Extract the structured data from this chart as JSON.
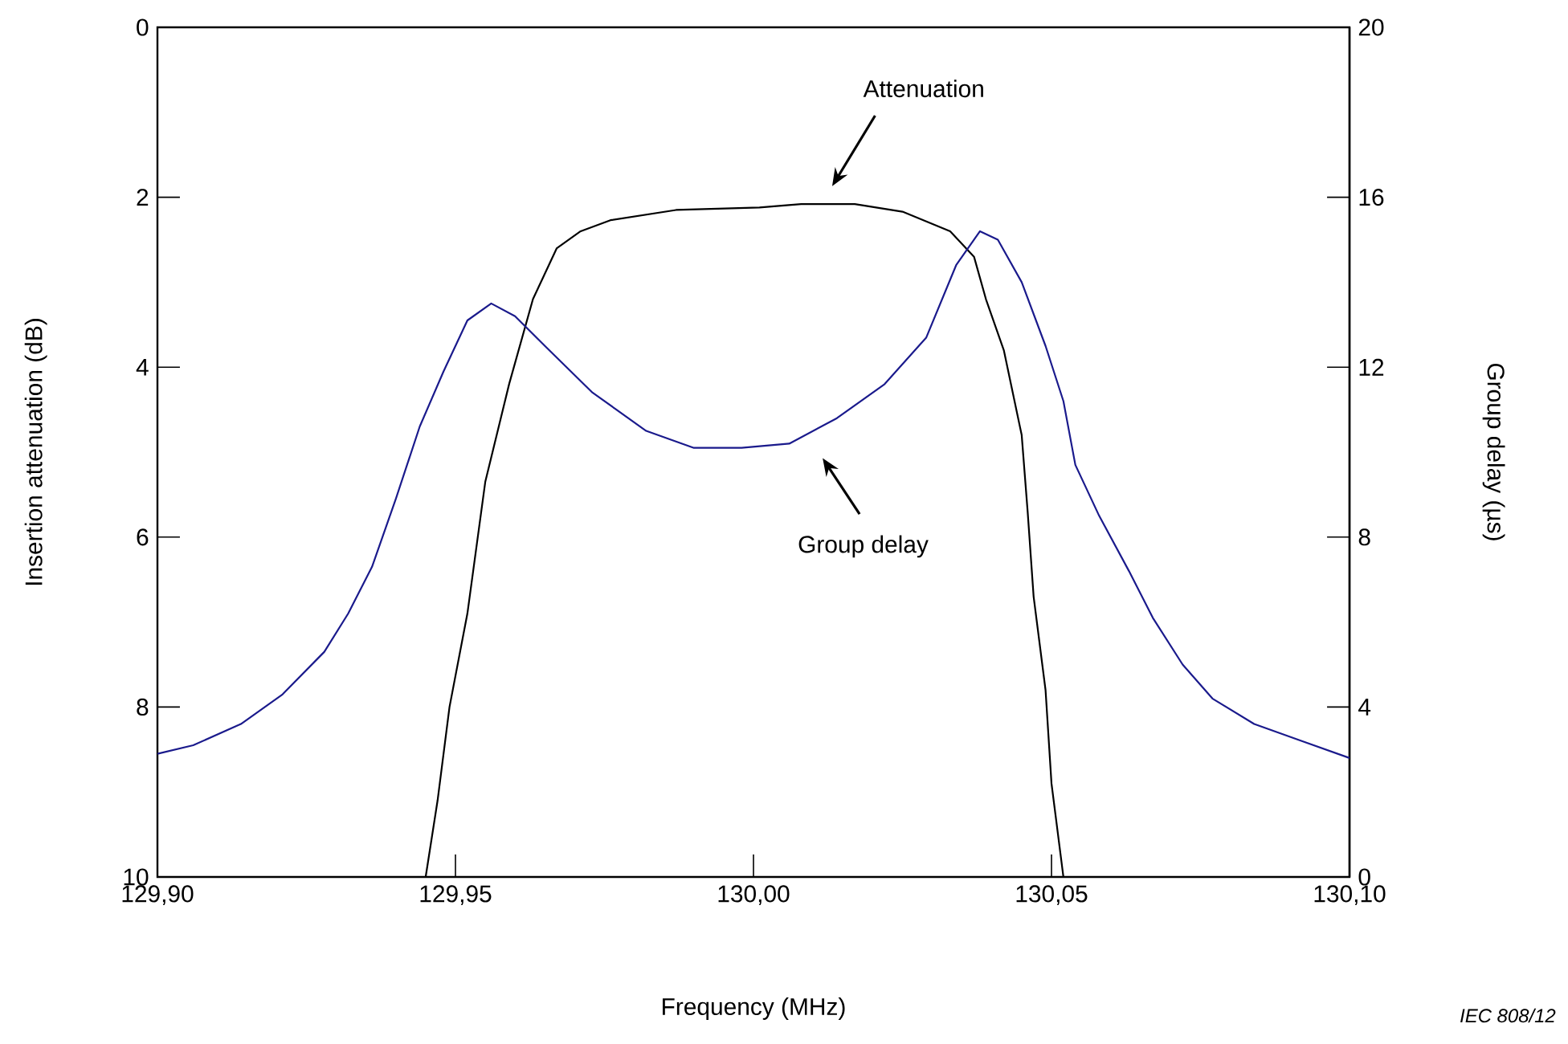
{
  "chart_data": {
    "type": "line",
    "xlabel": "Frequency   (MHz)",
    "ylabel": "Insertion attenuation   (dB)",
    "y2label": "Group delay   (µs)",
    "xlim": [
      129.9,
      130.1
    ],
    "xticks": [
      {
        "value": 129.9,
        "label": "129,90"
      },
      {
        "value": 129.95,
        "label": "129,95"
      },
      {
        "value": 130.0,
        "label": "130,00"
      },
      {
        "value": 130.05,
        "label": "130,05"
      },
      {
        "value": 130.1,
        "label": "130,10"
      }
    ],
    "ylim": [
      10,
      0
    ],
    "yticks": [
      0,
      2,
      4,
      6,
      8,
      10
    ],
    "y2lim": [
      0,
      20
    ],
    "y2ticks": [
      0,
      4,
      8,
      12,
      16,
      20
    ],
    "grid": false,
    "line_style": "solid",
    "series": [
      {
        "color": "#000000",
        "x": [
          129.945,
          129.947,
          129.949,
          129.952,
          129.955,
          129.959,
          129.963,
          129.967,
          129.971,
          129.976,
          129.987,
          130.001,
          130.008,
          130.017,
          130.025,
          130.033,
          130.037,
          130.039,
          130.042,
          130.045,
          130.046,
          130.047,
          130.049,
          130.05,
          130.052
        ],
        "values": [
          10.0,
          9.1,
          8.0,
          6.9,
          5.35,
          4.2,
          3.2,
          2.6,
          2.4,
          2.27,
          2.15,
          2.12,
          2.08,
          2.08,
          2.17,
          2.4,
          2.7,
          3.2,
          3.8,
          4.8,
          5.7,
          6.7,
          7.8,
          8.9,
          10.0
        ]
      },
      {
        "color": "#1a1a8c",
        "axis": "y2",
        "x": [
          129.9,
          129.906,
          129.914,
          129.921,
          129.928,
          129.932,
          129.936,
          129.94,
          129.944,
          129.948,
          129.952,
          129.956,
          129.96,
          129.965,
          129.973,
          129.982,
          129.99,
          129.998,
          130.006,
          130.014,
          130.022,
          130.029,
          130.034,
          130.038,
          130.041,
          130.045,
          130.049,
          130.052,
          130.054,
          130.058,
          130.063,
          130.067,
          130.072,
          130.077,
          130.084,
          130.092,
          130.1
        ],
        "values": [
          2.9,
          3.1,
          3.6,
          4.3,
          5.3,
          6.2,
          7.3,
          8.9,
          10.6,
          11.9,
          13.1,
          13.5,
          13.2,
          12.5,
          11.4,
          10.5,
          10.1,
          10.1,
          10.2,
          10.8,
          11.6,
          12.7,
          14.4,
          15.2,
          15.0,
          14.0,
          12.5,
          11.2,
          9.7,
          8.5,
          7.2,
          6.1,
          5.0,
          4.2,
          3.6,
          3.2,
          2.8
        ]
      }
    ],
    "annotations": [
      "Attenuation",
      "Group delay",
      "IEC   808/12"
    ]
  }
}
